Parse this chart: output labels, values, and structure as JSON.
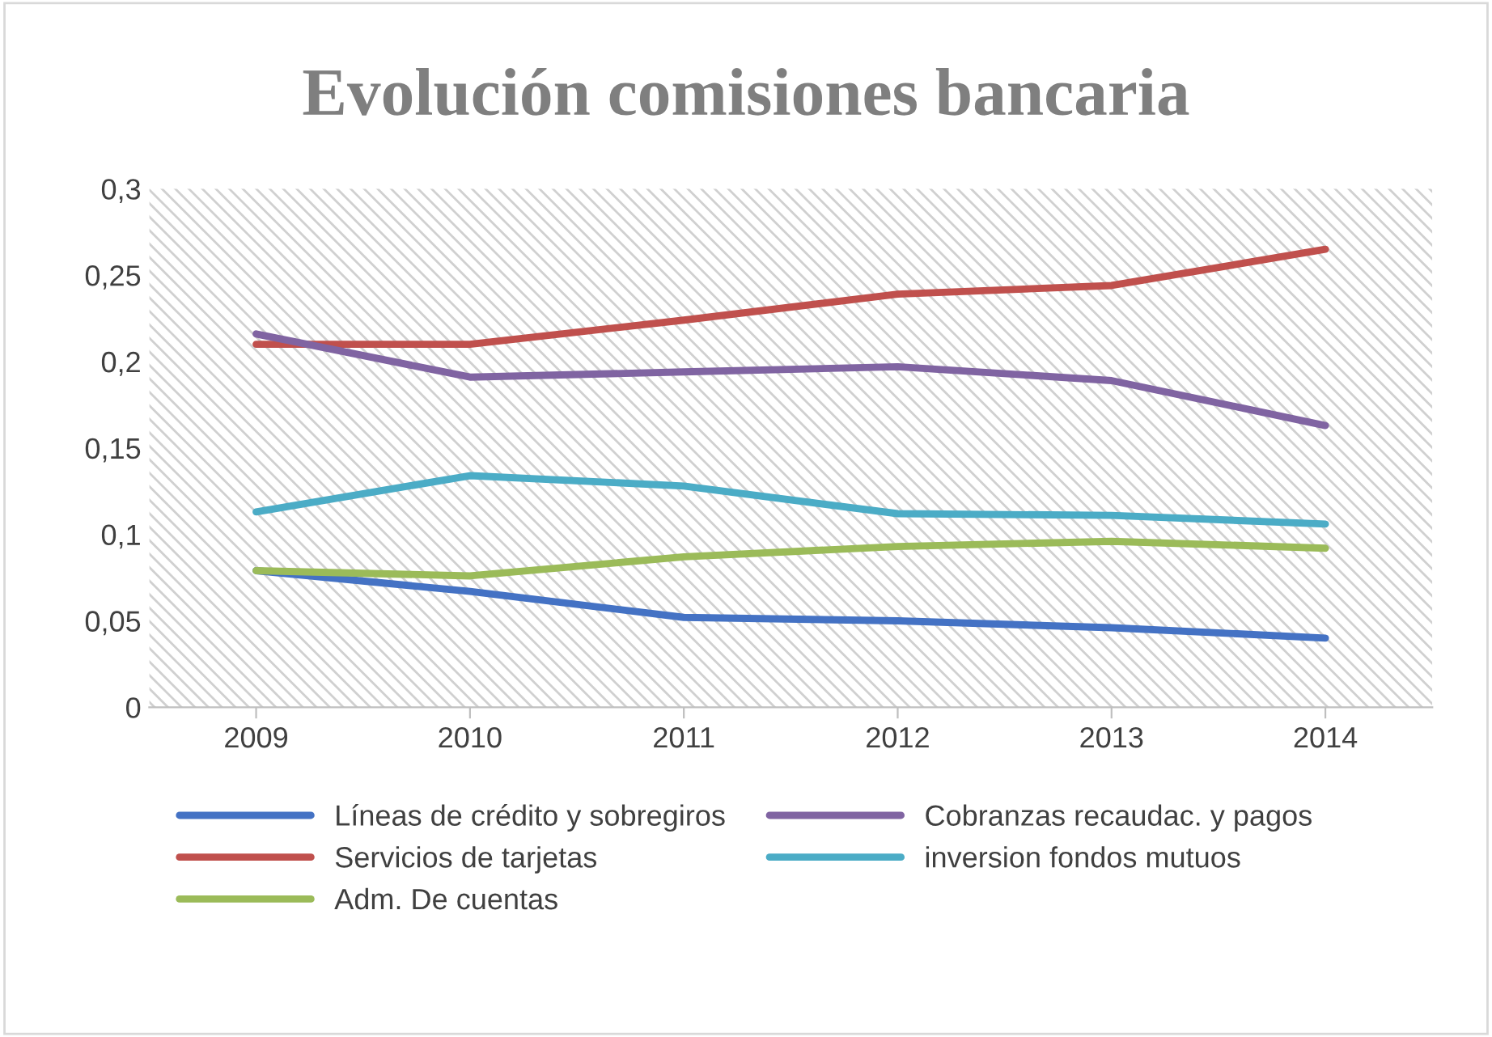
{
  "chart_data": {
    "type": "line",
    "title": "Evolución comisiones bancaria",
    "categories": [
      "2009",
      "2010",
      "2011",
      "2012",
      "2013",
      "2014"
    ],
    "series": [
      {
        "name": "Líneas de crédito y sobregiros",
        "color": "#4472c4",
        "values": [
          0.079,
          0.067,
          0.052,
          0.05,
          0.046,
          0.04
        ]
      },
      {
        "name": "Servicios de tarjetas",
        "color": "#c0504d",
        "values": [
          0.21,
          0.21,
          0.224,
          0.239,
          0.244,
          0.265
        ]
      },
      {
        "name": "Adm. De cuentas",
        "color": "#9bbb59",
        "values": [
          0.079,
          0.076,
          0.087,
          0.093,
          0.096,
          0.092
        ]
      },
      {
        "name": "Cobranzas recaudac. y pagos",
        "color": "#8064a2",
        "values": [
          0.216,
          0.191,
          0.194,
          0.197,
          0.189,
          0.163
        ]
      },
      {
        "name": "inversion fondos mutuos",
        "color": "#4bacc6",
        "values": [
          0.113,
          0.134,
          0.128,
          0.112,
          0.111,
          0.106
        ]
      }
    ],
    "ylim": [
      0,
      0.3
    ],
    "yticks": [
      0,
      {
        "value": 0.05,
        "label": "0,05"
      },
      {
        "value": 0.1,
        "label": "0,1"
      },
      {
        "value": 0.15,
        "label": "0,15"
      },
      {
        "value": 0.2,
        "label": "0,2"
      },
      {
        "value": 0.25,
        "label": "0,25"
      },
      {
        "value": 0.3,
        "label": "0,3"
      }
    ],
    "grid": false,
    "legend": "bottom",
    "marker": "none",
    "line_style": "solid"
  }
}
